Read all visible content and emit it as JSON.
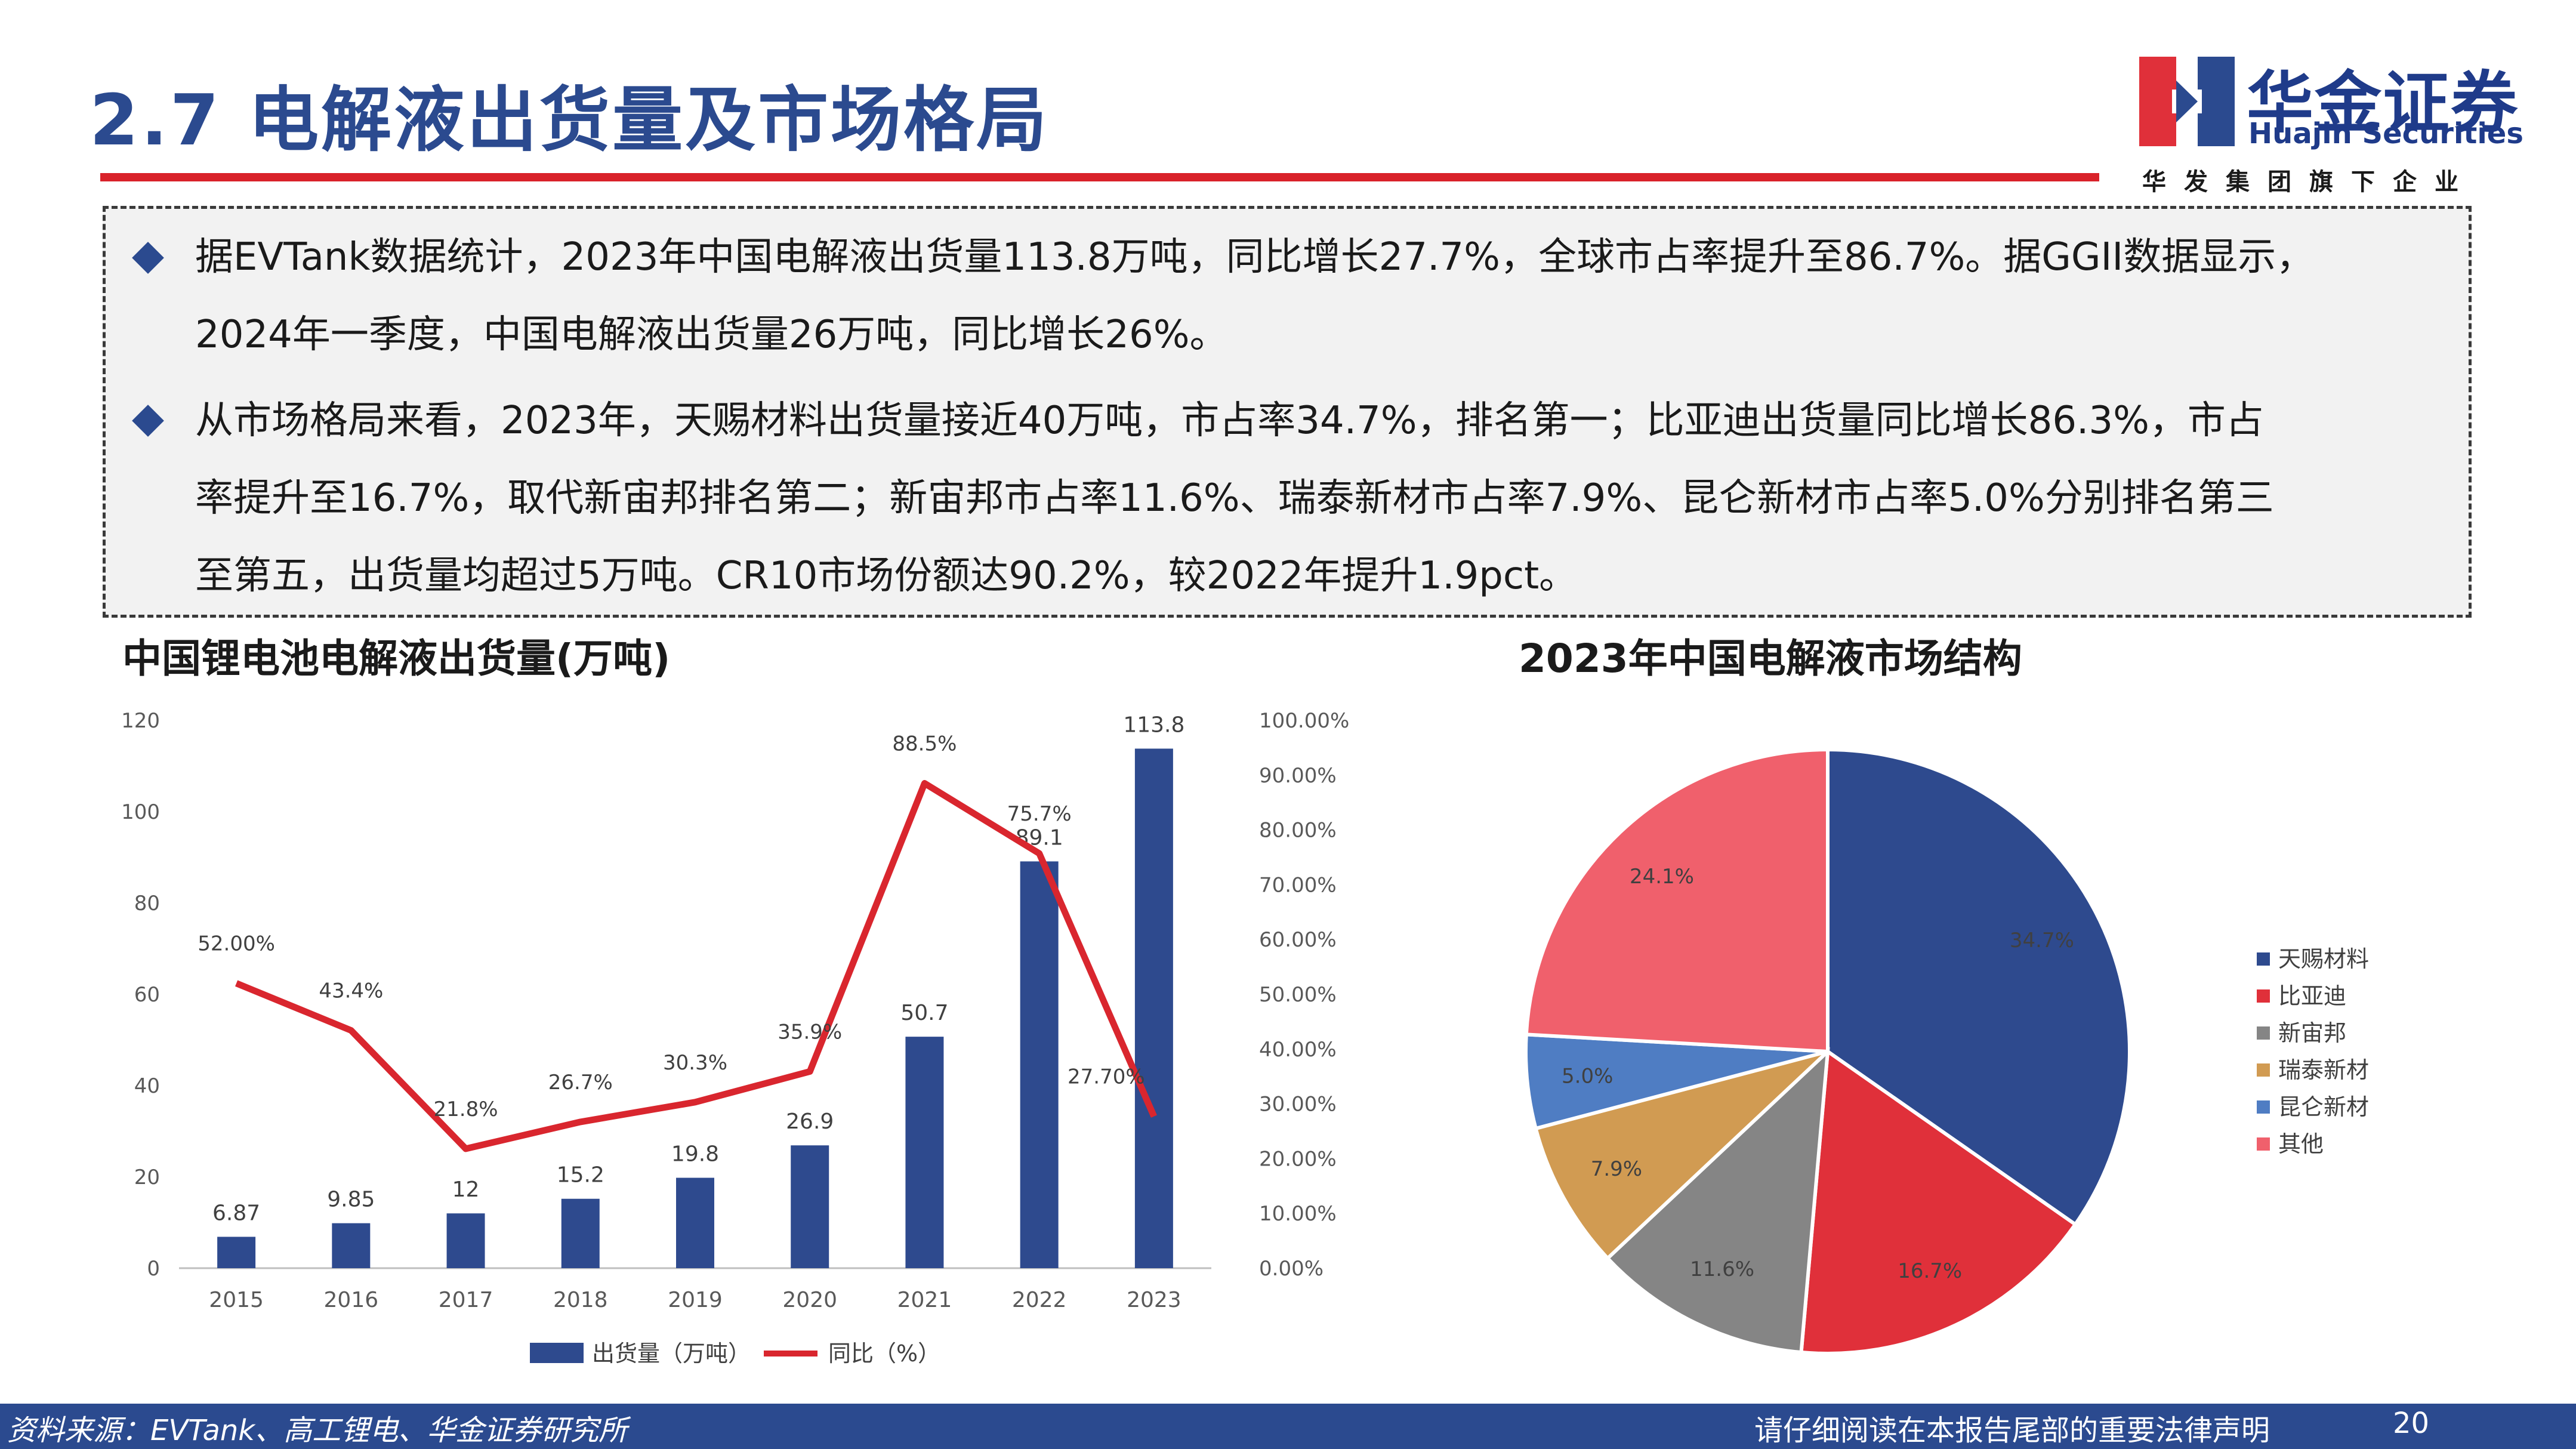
{
  "header": {
    "title": "2.7 电解液出货量及市场格局",
    "logo_cn": "华金证券",
    "logo_en": "Huajin Securities",
    "logo_sub": "华发集团旗下企业",
    "accent_color": "#d9222a",
    "brand_color": "#2b4a8f"
  },
  "summary": {
    "p1_line1": "据EVTank数据统计，2023年中国电解液出货量113.8万吨，同比增长27.7%，全球市占率提升至86.7%。据GGII数据显示，",
    "p1_line2": "2024年一季度，中国电解液出货量26万吨，同比增长26%。",
    "p2_line1": "从市场格局来看，2023年，天赐材料出货量接近40万吨，市占率34.7%，排名第一；比亚迪出货量同比增长86.3%，市占",
    "p2_line2": "率提升至16.7%，取代新宙邦排名第二；新宙邦市占率11.6%、瑞泰新材市占率7.9%、昆仑新材市占率5.0%分别排名第三",
    "p2_line3": "至第五，出货量均超过5万吨。CR10市场份额达90.2%，较2022年提升1.9pct。"
  },
  "chart_data": [
    {
      "type": "bar",
      "title": "中国锂电池电解液出货量(万吨)",
      "categories": [
        "2015",
        "2016",
        "2017",
        "2018",
        "2019",
        "2020",
        "2021",
        "2022",
        "2023"
      ],
      "series": [
        {
          "name": "出货量（万吨）",
          "type": "bar",
          "axis": "left",
          "color": "#2e4a8e",
          "values": [
            6.87,
            9.85,
            12,
            15.2,
            19.8,
            26.9,
            50.7,
            89.1,
            113.8
          ],
          "labels": [
            "6.87",
            "9.85",
            "12",
            "15.2",
            "19.8",
            "26.9",
            "50.7",
            "89.1",
            "113.8"
          ]
        },
        {
          "name": "同比（%）",
          "type": "line",
          "axis": "right",
          "color": "#d9262e",
          "values": [
            52.0,
            43.4,
            21.8,
            26.7,
            30.3,
            35.9,
            88.5,
            75.7,
            27.7
          ],
          "labels": [
            "52.00%",
            "43.4%",
            "21.8%",
            "26.7%",
            "30.3%",
            "35.9%",
            "88.5%",
            "75.7%",
            "27.70%"
          ]
        }
      ],
      "y_left": {
        "min": 0,
        "max": 120,
        "ticks": [
          "0",
          "20",
          "40",
          "60",
          "80",
          "100",
          "120"
        ]
      },
      "y_right": {
        "min": 0,
        "max": 100,
        "ticks": [
          "0.00%",
          "10.00%",
          "20.00%",
          "30.00%",
          "40.00%",
          "50.00%",
          "60.00%",
          "70.00%",
          "80.00%",
          "90.00%",
          "100.00%"
        ]
      },
      "grid": false,
      "legend": "bottom"
    },
    {
      "type": "pie",
      "title": "2023年中国电解液市场结构",
      "slices": [
        {
          "name": "天赐材料",
          "value": 34.7,
          "label": "34.7%",
          "color": "#2e4a8e"
        },
        {
          "name": "比亚迪",
          "value": 16.7,
          "label": "16.7%",
          "color": "#e0303a"
        },
        {
          "name": "新宙邦",
          "value": 11.6,
          "label": "11.6%",
          "color": "#858585"
        },
        {
          "name": "瑞泰新材",
          "value": 7.9,
          "label": "7.9%",
          "color": "#d19b52"
        },
        {
          "name": "昆仑新材",
          "value": 5.0,
          "label": "5.0%",
          "color": "#4f7dc3"
        },
        {
          "name": "其他",
          "value": 24.1,
          "label": "24.1%",
          "color": "#f0606c"
        }
      ],
      "legend": "right"
    }
  ],
  "footer": {
    "source": "资料来源：EVTank、高工锂电、华金证券研究所",
    "legal": "请仔细阅读在本报告尾部的重要法律声明",
    "page": "20"
  }
}
